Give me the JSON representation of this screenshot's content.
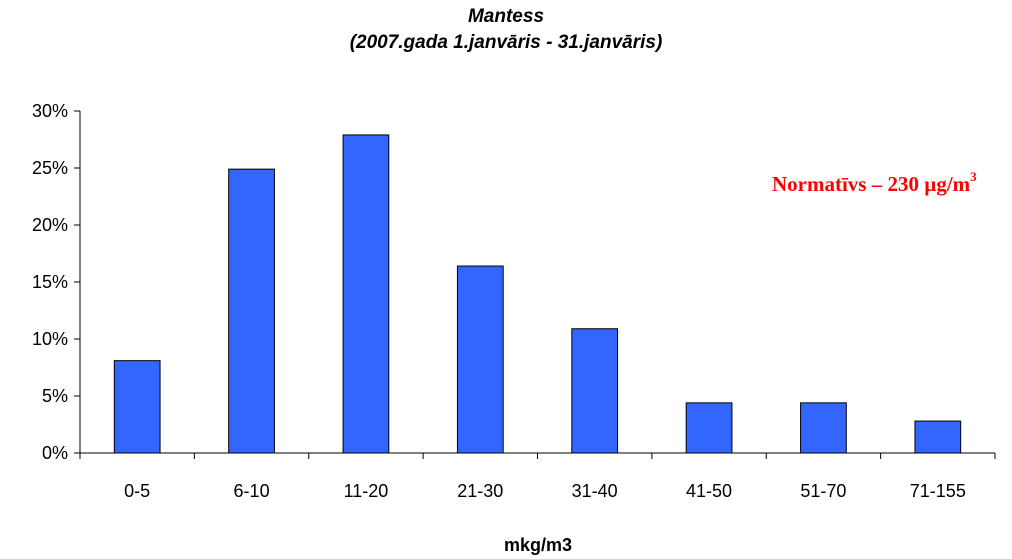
{
  "chart_data": {
    "type": "bar",
    "title": "Mantess",
    "subtitle": "(2007.gada 1.janvāris - 31.janvāris)",
    "xlabel": "mkg/m3",
    "ylabel": "",
    "categories": [
      "0-5",
      "6-10",
      "11-20",
      "21-30",
      "31-40",
      "41-50",
      "51-70",
      "71-155"
    ],
    "values": [
      8.1,
      24.9,
      27.9,
      16.4,
      10.9,
      4.4,
      4.4,
      2.8
    ],
    "value_unit": "%",
    "ylim": [
      0,
      30
    ],
    "yticks": [
      "0%",
      "5%",
      "10%",
      "15%",
      "20%",
      "25%",
      "30%"
    ],
    "grid": false,
    "legend": "none",
    "bar_color": "#3366FF",
    "annotation": {
      "text": "Normatīvs – 230 µg/m",
      "superscript": "3",
      "color": "#FF0000"
    }
  }
}
